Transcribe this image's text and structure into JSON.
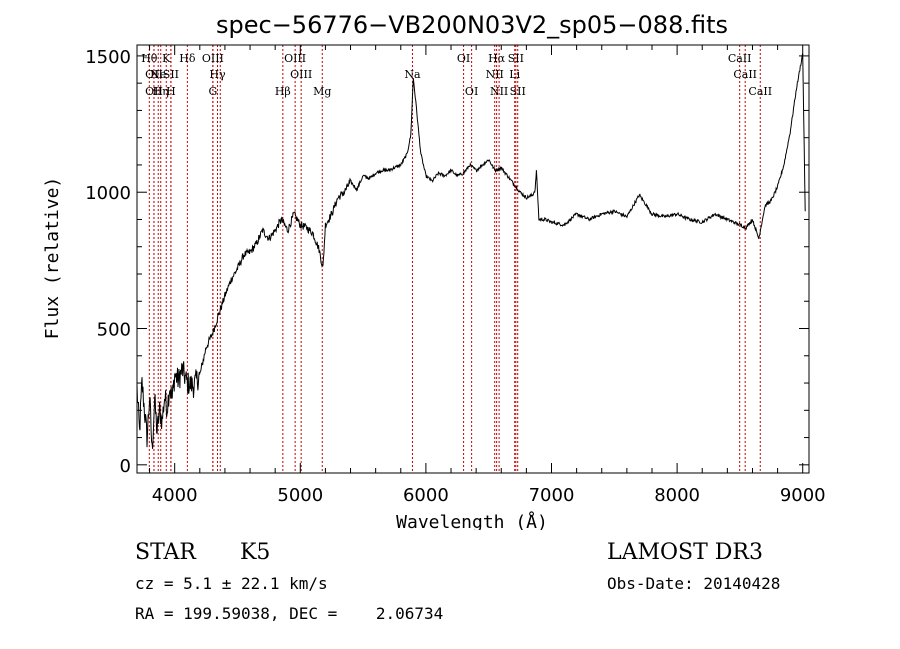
{
  "chart_data": {
    "type": "line",
    "title": "spec−56776−VB200N03V2_sp05−088.fits",
    "xlabel": "Wavelength (Å)",
    "ylabel": "Flux (relative)",
    "xlim": [
      3700,
      9050
    ],
    "ylim": [
      -30,
      1540
    ],
    "xticks": [
      4000,
      5000,
      6000,
      7000,
      8000,
      9000
    ],
    "yticks": [
      0,
      500,
      1000,
      1500
    ],
    "grid": false,
    "line_color": "#000000",
    "marker_color": "#cc0000",
    "series": [
      {
        "x": [
          3700,
          3720,
          3740,
          3760,
          3780,
          3800,
          3820,
          3840,
          3860,
          3880,
          3900,
          3920,
          3940,
          3960,
          3980,
          4000,
          4030,
          4060,
          4100,
          4150,
          4200,
          4250,
          4300,
          4350,
          4400,
          4450,
          4500,
          4550,
          4600,
          4650,
          4700,
          4750,
          4800,
          4850,
          4900,
          4950,
          5000,
          5050,
          5100,
          5150,
          5180,
          5200,
          5250,
          5300,
          5350,
          5400,
          5450,
          5500,
          5550,
          5600,
          5650,
          5700,
          5750,
          5800,
          5850,
          5880,
          5900,
          5920,
          5940,
          5960,
          6000,
          6050,
          6100,
          6150,
          6200,
          6250,
          6300,
          6350,
          6400,
          6450,
          6500,
          6550,
          6600,
          6650,
          6700,
          6750,
          6800,
          6850,
          6870,
          6880,
          6900,
          6950,
          7000,
          7100,
          7200,
          7300,
          7400,
          7500,
          7600,
          7700,
          7800,
          7900,
          8000,
          8100,
          8200,
          8300,
          8400,
          8500,
          8550,
          8600,
          8650,
          8700,
          8750,
          8800,
          8850,
          8900,
          8950,
          9000,
          9020
        ],
        "y": [
          280,
          120,
          300,
          200,
          100,
          250,
          50,
          240,
          120,
          200,
          160,
          250,
          210,
          290,
          240,
          330,
          310,
          350,
          300,
          290,
          330,
          430,
          480,
          550,
          620,
          680,
          720,
          770,
          780,
          810,
          860,
          830,
          860,
          900,
          860,
          920,
          880,
          870,
          850,
          790,
          720,
          880,
          920,
          980,
          1000,
          1040,
          1010,
          1060,
          1050,
          1070,
          1080,
          1080,
          1090,
          1100,
          1140,
          1210,
          1420,
          1330,
          1230,
          1140,
          1060,
          1040,
          1070,
          1060,
          1080,
          1060,
          1070,
          1100,
          1080,
          1100,
          1120,
          1080,
          1090,
          1060,
          1030,
          1000,
          980,
          990,
          1010,
          1080,
          900,
          900,
          890,
          880,
          920,
          900,
          920,
          930,
          910,
          990,
          920,
          910,
          920,
          900,
          890,
          920,
          900,
          880,
          870,
          900,
          830,
          950,
          970,
          1020,
          1100,
          1220,
          1380,
          1510,
          930
        ]
      }
    ],
    "markers": [
      {
        "x": 3798,
        "label": "Hθ",
        "row": 1
      },
      {
        "x": 3835,
        "label": "OII",
        "row": 2
      },
      {
        "x": 3835,
        "label": "OII",
        "row": 3
      },
      {
        "x": 3869,
        "label": "Ne",
        "row": 2
      },
      {
        "x": 3889,
        "label": "Hη",
        "row": 3
      },
      {
        "x": 3933,
        "label": "K",
        "row": 1
      },
      {
        "x": 3970,
        "label": "SII",
        "row": 2
      },
      {
        "x": 3970,
        "label": "H",
        "row": 3
      },
      {
        "x": 4101,
        "label": "Hδ",
        "row": 1
      },
      {
        "x": 4304,
        "label": "OIII",
        "row": 1
      },
      {
        "x": 4341,
        "label": "Hγ",
        "row": 2
      },
      {
        "x": 4304,
        "label": "G",
        "row": 3
      },
      {
        "x": 4363,
        "label": "",
        "row": 0
      },
      {
        "x": 4861,
        "label": "Hβ",
        "row": 3
      },
      {
        "x": 4959,
        "label": "OIII",
        "row": 1
      },
      {
        "x": 5007,
        "label": "OIII",
        "row": 2
      },
      {
        "x": 5175,
        "label": "Mg",
        "row": 3
      },
      {
        "x": 5893,
        "label": "Na",
        "row": 2
      },
      {
        "x": 6300,
        "label": "OI",
        "row": 1
      },
      {
        "x": 6364,
        "label": "OI",
        "row": 3
      },
      {
        "x": 6548,
        "label": "NII",
        "row": 2
      },
      {
        "x": 6563,
        "label": "Hα",
        "row": 1
      },
      {
        "x": 6583,
        "label": "NII",
        "row": 3
      },
      {
        "x": 6707,
        "label": "Li",
        "row": 2
      },
      {
        "x": 6716,
        "label": "SII",
        "row": 1
      },
      {
        "x": 6731,
        "label": "SII",
        "row": 3
      },
      {
        "x": 8498,
        "label": "CaII",
        "row": 1
      },
      {
        "x": 8542,
        "label": "CaII",
        "row": 2
      },
      {
        "x": 8662,
        "label": "CaII",
        "row": 3
      }
    ]
  },
  "info": {
    "class": "STAR",
    "subclass": "K5",
    "survey": "LAMOST DR3",
    "redshift": "cz = 5.1 ± 22.1 km/s",
    "obs_date": "Obs-Date: 20140428",
    "coords": "RA = 199.59038, DEC =    2.06734"
  }
}
